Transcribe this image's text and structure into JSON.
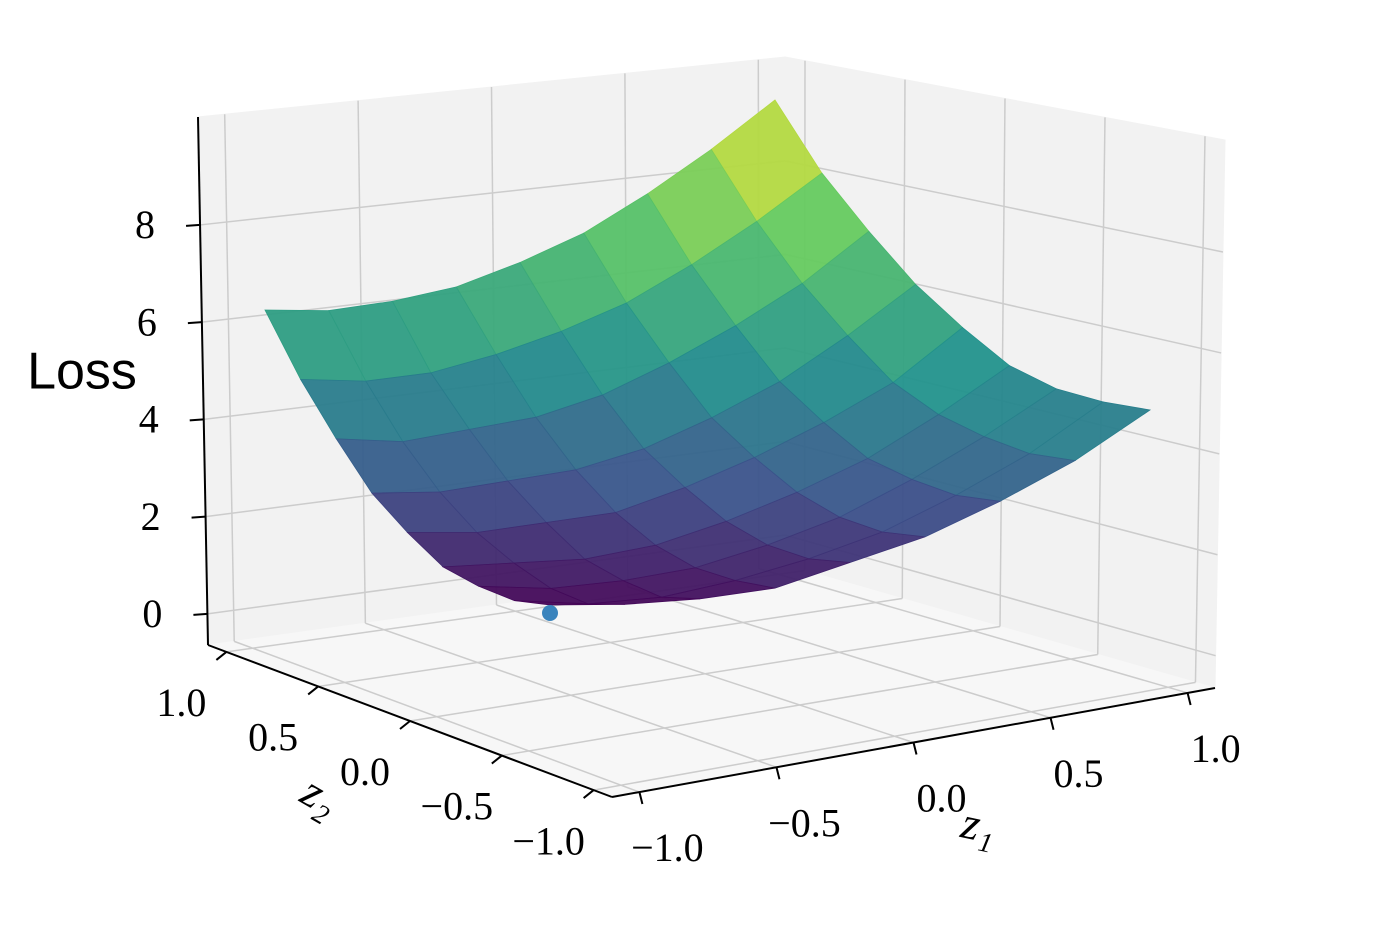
{
  "chart_data": {
    "type": "surface",
    "x_label": "z₁",
    "y_label": "z₂",
    "z_label": "Loss",
    "x": [
      -1,
      -0.75,
      -0.5,
      -0.25,
      0,
      0.25,
      0.5,
      0.75,
      1
    ],
    "y": [
      -1,
      -0.75,
      -0.5,
      -0.25,
      0,
      0.25,
      0.5,
      0.75,
      1
    ],
    "z": [
      [
        0,
        0.1,
        0.3,
        0.6,
        1.2,
        1.8,
        2.6,
        3.5,
        4.6
      ],
      [
        0.1,
        0.1,
        0.3,
        0.7,
        1.2,
        1.8,
        2.6,
        3.5,
        4.6
      ],
      [
        0.4,
        0.4,
        0.6,
        0.9,
        1.4,
        2.0,
        2.8,
        3.7,
        4.7
      ],
      [
        0.8,
        0.9,
        1.0,
        1.3,
        1.8,
        2.4,
        3.1,
        4.0,
        5.0
      ],
      [
        1.5,
        1.5,
        1.7,
        1.9,
        2.4,
        3.0,
        3.7,
        4.5,
        5.6
      ],
      [
        2.3,
        2.3,
        2.5,
        2.7,
        3.1,
        3.7,
        4.4,
        5.3,
        6.3
      ],
      [
        3.4,
        3.3,
        3.5,
        3.7,
        4.1,
        4.7,
        5.4,
        6.2,
        7.2
      ],
      [
        4.6,
        4.5,
        4.6,
        4.9,
        5.3,
        5.8,
        6.5,
        7.3,
        8.2
      ],
      [
        6.0,
        5.9,
        6.0,
        6.2,
        6.6,
        7.1,
        7.8,
        8.6,
        9.5
      ]
    ],
    "colormap": "viridis",
    "xlim": [
      -1.1,
      1.1
    ],
    "ylim": [
      -1.1,
      1.1
    ],
    "zlim": [
      -0.64,
      10.22
    ],
    "xticks": [
      {
        "value": -1,
        "label": "−1.0"
      },
      {
        "value": -0.5,
        "label": "−0.5"
      },
      {
        "value": 0,
        "label": "0.0"
      },
      {
        "value": 0.5,
        "label": "0.5"
      },
      {
        "value": 1,
        "label": "1.0"
      }
    ],
    "yticks": [
      {
        "value": -1,
        "label": "−1.0"
      },
      {
        "value": -0.5,
        "label": "−0.5"
      },
      {
        "value": 0,
        "label": "0.0"
      },
      {
        "value": 0.5,
        "label": "0.5"
      },
      {
        "value": 1,
        "label": "1.0"
      }
    ],
    "zticks": [
      0,
      2,
      4,
      6,
      8
    ],
    "point": {
      "x": -1,
      "y": -1,
      "z": 0,
      "color": "#3a84bd"
    },
    "grid": true
  }
}
